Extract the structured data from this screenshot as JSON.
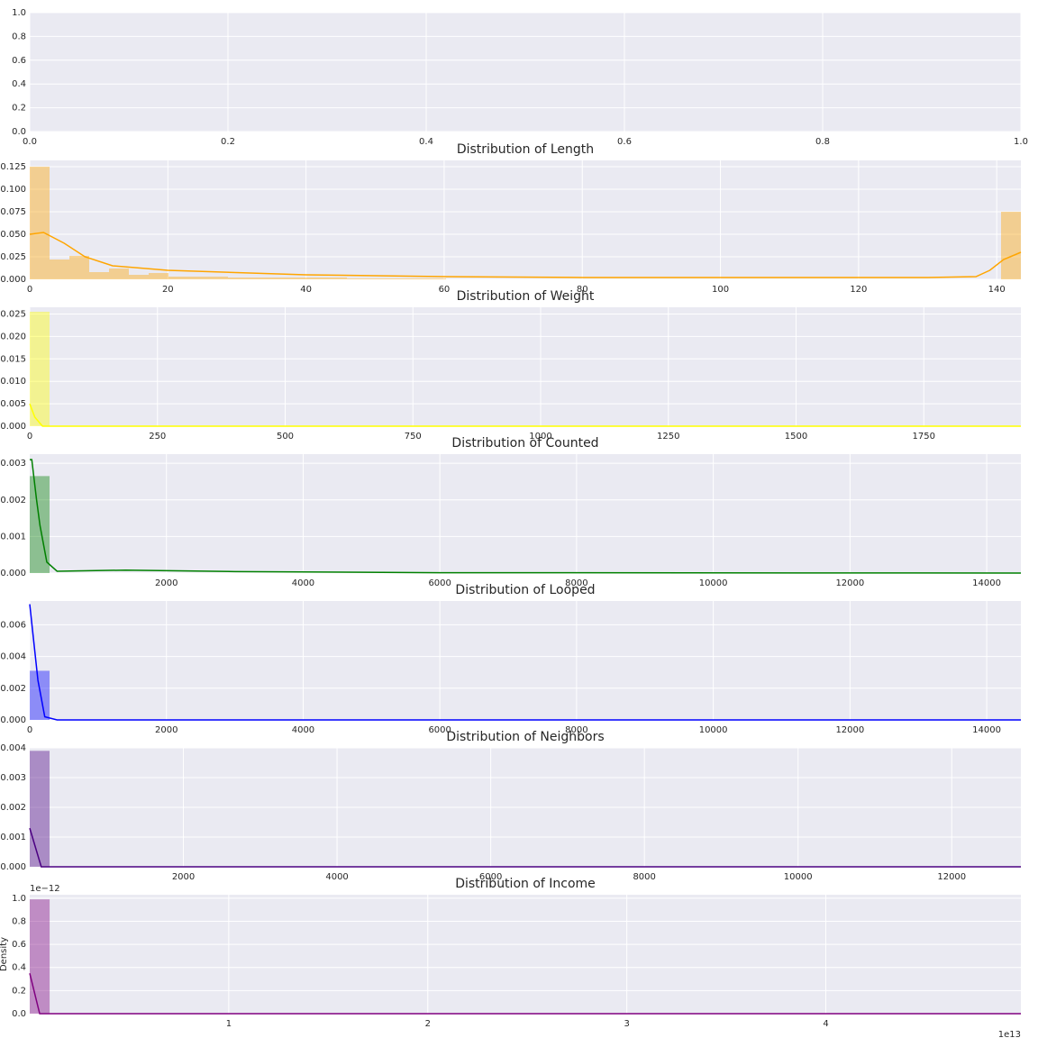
{
  "chart_data": [
    {
      "type": "histogram",
      "xlim": [
        0,
        1
      ],
      "ylim": [
        0,
        1
      ],
      "xticks": [
        {
          "value": 0,
          "label": "0.0"
        },
        {
          "value": 0.2,
          "label": "0.2"
        },
        {
          "value": 0.4,
          "label": "0.4"
        },
        {
          "value": 0.6,
          "label": "0.6"
        },
        {
          "value": 0.8,
          "label": "0.8"
        },
        {
          "value": 1,
          "label": "1.0"
        }
      ],
      "yticks": [
        {
          "value": 0,
          "label": "0.0"
        },
        {
          "value": 0.2,
          "label": "0.2"
        },
        {
          "value": 0.4,
          "label": "0.4"
        },
        {
          "value": 0.6,
          "label": "0.6"
        },
        {
          "value": 0.8,
          "label": "0.8"
        },
        {
          "value": 1,
          "label": "1.0"
        }
      ],
      "grid": true
    },
    {
      "type": "histogram",
      "title": "Distribution of Length",
      "color": "orange",
      "xlim": [
        0,
        143.5
      ],
      "ylim": [
        0,
        0.132
      ],
      "xticks": [
        0,
        20,
        40,
        60,
        80,
        100,
        120,
        140
      ],
      "yticks": [
        {
          "value": 0,
          "label": "0.000"
        },
        {
          "value": 0.025,
          "label": "0.025"
        },
        {
          "value": 0.05,
          "label": "0.050"
        },
        {
          "value": 0.075,
          "label": "0.075"
        },
        {
          "value": 0.1,
          "label": "0.100"
        },
        {
          "value": 0.125,
          "label": "0.125"
        }
      ],
      "bins": [
        0,
        2.87,
        5.74,
        8.61,
        11.48,
        14.35,
        17.22,
        20.09,
        22.96,
        25.83,
        28.7,
        31.57,
        34.44,
        37.31,
        40.18,
        43.05,
        45.92,
        48.79,
        51.66,
        54.53,
        57.4,
        60.27,
        63.14,
        66.01,
        68.88,
        71.75,
        74.62,
        77.49,
        80.36,
        83.23,
        86.1,
        88.97,
        91.84,
        94.71,
        97.58,
        100.45,
        103.32,
        106.19,
        109.06,
        111.93,
        114.8,
        117.67,
        120.54,
        123.41,
        126.28,
        129.15,
        132.02,
        134.89,
        137.76,
        140.63,
        143.5
      ],
      "counts": [
        0.125,
        0.022,
        0.026,
        0.008,
        0.012,
        0.005,
        0.007,
        0.003,
        0.003,
        0.003,
        0.002,
        0.002,
        0.002,
        0.002,
        0.002,
        0.002,
        0.001,
        0.001,
        0.001,
        0.001,
        0.001,
        0,
        0,
        0,
        0,
        0,
        0,
        0,
        0,
        0,
        0,
        0,
        0,
        0,
        0,
        0,
        0,
        0,
        0,
        0,
        0,
        0,
        0,
        0,
        0,
        0,
        0,
        0,
        0,
        0.075
      ],
      "kde": {
        "x": [
          0,
          2,
          5,
          8,
          12,
          20,
          40,
          60,
          80,
          100,
          130,
          137,
          139,
          141,
          143.5
        ],
        "y": [
          0.05,
          0.052,
          0.04,
          0.025,
          0.015,
          0.01,
          0.005,
          0.003,
          0.002,
          0.002,
          0.002,
          0.003,
          0.01,
          0.022,
          0.03
        ]
      },
      "grid": true
    },
    {
      "type": "histogram",
      "title": "Distribution of Weight",
      "color": "yellow",
      "xlim": [
        0,
        1940
      ],
      "ylim": [
        0,
        0.0265
      ],
      "xticks": [
        0,
        250,
        500,
        750,
        1000,
        1250,
        1500,
        1750
      ],
      "yticks": [
        {
          "value": 0,
          "label": "0.000"
        },
        {
          "value": 0.005,
          "label": "0.005"
        },
        {
          "value": 0.01,
          "label": "0.010"
        },
        {
          "value": 0.015,
          "label": "0.015"
        },
        {
          "value": 0.02,
          "label": "0.020"
        },
        {
          "value": 0.025,
          "label": "0.025"
        }
      ],
      "bins": [
        0,
        38.8
      ],
      "counts": [
        0.0255
      ],
      "kde": {
        "x": [
          0,
          10,
          25,
          1940
        ],
        "y": [
          0.005,
          0.002,
          0,
          0
        ]
      },
      "grid": true
    },
    {
      "type": "histogram",
      "title": "Distribution of Counted",
      "color": "green",
      "xlim": [
        0,
        14500
      ],
      "ylim": [
        0,
        0.00325
      ],
      "xticks": [
        2000,
        4000,
        6000,
        8000,
        10000,
        12000,
        14000
      ],
      "yticks": [
        {
          "value": 0,
          "label": "0.000"
        },
        {
          "value": 0.001,
          "label": "0.001"
        },
        {
          "value": 0.002,
          "label": "0.002"
        },
        {
          "value": 0.003,
          "label": "0.003"
        }
      ],
      "bins": [
        0,
        290
      ],
      "counts": [
        0.00265
      ],
      "kde": {
        "x": [
          0,
          30,
          100,
          150,
          250,
          400,
          1400,
          3000,
          6000,
          14500
        ],
        "y": [
          0.0031,
          0.0031,
          0.002,
          0.0013,
          0.0003,
          5e-05,
          8e-05,
          4e-05,
          1e-05,
          0
        ]
      },
      "grid": true
    },
    {
      "type": "histogram",
      "title": "Distribution of Looped",
      "color": "blue",
      "xlim": [
        0,
        14500
      ],
      "ylim": [
        0,
        0.0075
      ],
      "xticks": [
        0,
        2000,
        4000,
        6000,
        8000,
        10000,
        12000,
        14000
      ],
      "yticks": [
        {
          "value": 0,
          "label": "0.000"
        },
        {
          "value": 0.002,
          "label": "0.002"
        },
        {
          "value": 0.004,
          "label": "0.004"
        },
        {
          "value": 0.006,
          "label": "0.006"
        }
      ],
      "bins": [
        0,
        290
      ],
      "counts": [
        0.0031
      ],
      "kde": {
        "x": [
          0,
          120,
          220,
          400,
          14500
        ],
        "y": [
          0.0073,
          0.0025,
          0.0002,
          0,
          0
        ]
      },
      "grid": true
    },
    {
      "type": "histogram",
      "title": "Distribution of Neighbors",
      "color": "indigo",
      "xlim": [
        0,
        12900
      ],
      "ylim": [
        0,
        0.004
      ],
      "xticks": [
        2000,
        4000,
        6000,
        8000,
        10000,
        12000
      ],
      "yticks": [
        {
          "value": 0,
          "label": "0.000"
        },
        {
          "value": 0.001,
          "label": "0.001"
        },
        {
          "value": 0.002,
          "label": "0.002"
        },
        {
          "value": 0.003,
          "label": "0.003"
        },
        {
          "value": 0.004,
          "label": "0.004"
        }
      ],
      "bins": [
        0,
        258
      ],
      "counts": [
        0.0039
      ],
      "kde": {
        "x": [
          0,
          150,
          12900
        ],
        "y": [
          0.0013,
          0,
          0
        ]
      },
      "grid": true
    },
    {
      "type": "histogram",
      "title": "Distribution of Income",
      "color": "purple",
      "ylabel": "Density",
      "y_offset_label": "1e−12",
      "x_offset_label": "1e13",
      "xlim": [
        0,
        4.98
      ],
      "ylim": [
        0,
        1.03
      ],
      "xticks": [
        1,
        2,
        3,
        4
      ],
      "yticks": [
        {
          "value": 0,
          "label": "0.0"
        },
        {
          "value": 0.2,
          "label": "0.2"
        },
        {
          "value": 0.4,
          "label": "0.4"
        },
        {
          "value": 0.6,
          "label": "0.6"
        },
        {
          "value": 0.8,
          "label": "0.8"
        },
        {
          "value": 1,
          "label": "1.0"
        }
      ],
      "bins": [
        0,
        0.1
      ],
      "counts": [
        0.99
      ],
      "kde": {
        "x": [
          0,
          0.05,
          4.98
        ],
        "y": [
          0.35,
          0,
          0
        ]
      },
      "grid": true
    }
  ]
}
